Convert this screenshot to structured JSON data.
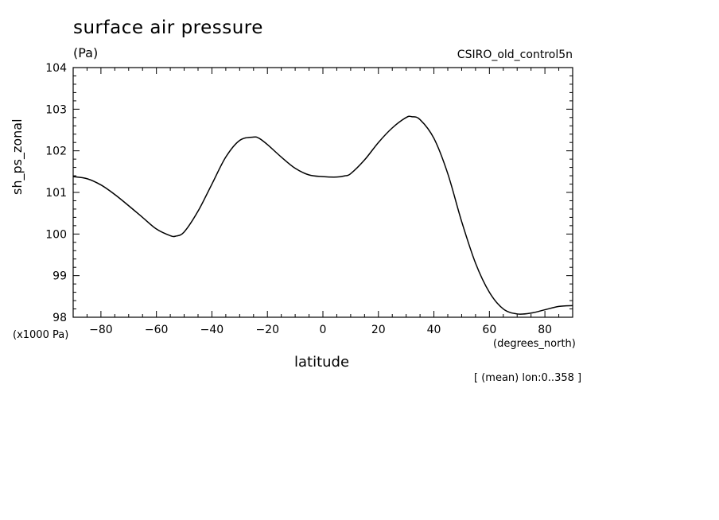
{
  "chart_data": {
    "type": "line",
    "title": "surface air pressure",
    "units": "(Pa)",
    "dataset": "CSIRO_old_control5n",
    "ylabel": "sh_ps_zonal",
    "y_scale_note": "(x1000 Pa)",
    "xlabel": "latitude",
    "x_units": "(degrees_north)",
    "footnote": "[ (mean) lon:0..358 ]",
    "xlim": [
      -90,
      90
    ],
    "ylim": [
      98,
      104
    ],
    "x_ticks": [
      -80,
      -60,
      -40,
      -20,
      0,
      20,
      40,
      60,
      80
    ],
    "y_ticks": [
      98,
      99,
      100,
      101,
      102,
      103,
      104
    ],
    "grid": false,
    "series": [
      {
        "x": [
          -90,
          -85,
          -80,
          -75,
          -70,
          -65,
          -60,
          -55,
          -53,
          -50,
          -45,
          -40,
          -35,
          -30,
          -25,
          -23,
          -20,
          -15,
          -10,
          -5,
          0,
          5,
          8,
          10,
          15,
          20,
          25,
          30,
          32,
          35,
          40,
          45,
          50,
          55,
          60,
          65,
          70,
          75,
          80,
          85,
          90
        ],
        "y": [
          101.38,
          101.33,
          101.18,
          100.95,
          100.68,
          100.4,
          100.12,
          99.96,
          99.95,
          100.05,
          100.55,
          101.2,
          101.85,
          102.25,
          102.33,
          102.3,
          102.15,
          101.85,
          101.58,
          101.42,
          101.38,
          101.37,
          101.4,
          101.45,
          101.78,
          102.2,
          102.55,
          102.8,
          102.82,
          102.75,
          102.3,
          101.45,
          100.3,
          99.3,
          98.6,
          98.2,
          98.08,
          98.1,
          98.18,
          98.26,
          98.28
        ]
      }
    ]
  }
}
